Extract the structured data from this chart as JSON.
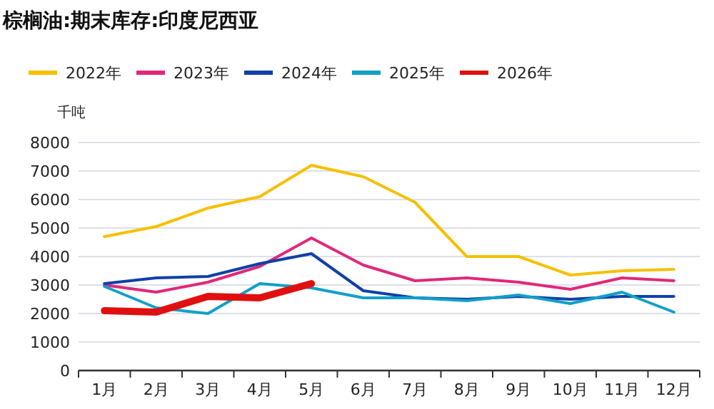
{
  "chart_data": {
    "type": "line",
    "title": "棕榈油:期末库存:印度尼西亚",
    "ylabel": "千吨",
    "categories": [
      "1月",
      "2月",
      "3月",
      "4月",
      "5月",
      "6月",
      "7月",
      "8月",
      "9月",
      "10月",
      "11月",
      "12月"
    ],
    "series": [
      {
        "name": "2022年",
        "color": "#f5c000",
        "values": [
          4700,
          5050,
          5700,
          6100,
          7200,
          6800,
          5900,
          4000,
          4000,
          3350,
          3500,
          3550
        ]
      },
      {
        "name": "2023年",
        "color": "#e0287a",
        "values": [
          3000,
          2750,
          3100,
          3650,
          4650,
          3700,
          3150,
          3250,
          3100,
          2850,
          3250,
          3150
        ]
      },
      {
        "name": "2024年",
        "color": "#1040a8",
        "values": [
          3050,
          3250,
          3300,
          3750,
          4100,
          2800,
          2550,
          2500,
          2600,
          2500,
          2600,
          2600
        ]
      },
      {
        "name": "2025年",
        "color": "#10a0c8",
        "values": [
          2950,
          2200,
          2000,
          3050,
          2900,
          2550,
          2550,
          2450,
          2650,
          2350,
          2750,
          2050
        ]
      },
      {
        "name": "2026年",
        "color": "#e01010",
        "values": [
          2100,
          2050,
          2600,
          2550,
          3050,
          null,
          null,
          null,
          null,
          null,
          null,
          null
        ]
      }
    ],
    "ylim": [
      0,
      8000
    ],
    "yticks": [
      0,
      1000,
      2000,
      3000,
      4000,
      5000,
      6000,
      7000,
      8000
    ],
    "grid": "y",
    "legend": "top left",
    "marker": "none",
    "line_style": "solid"
  }
}
